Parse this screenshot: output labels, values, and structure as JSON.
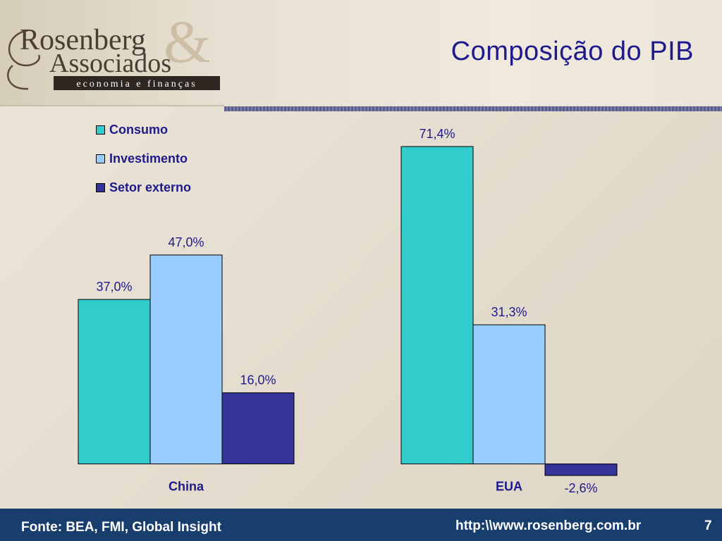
{
  "header": {
    "logo_text_line1": "Rosenberg",
    "logo_text_line2": "Associados",
    "logo_ampersand": "&",
    "logo_tagline": "economia e finanças",
    "title": "Composição do PIB"
  },
  "chart_data": {
    "type": "bar",
    "categories": [
      "China",
      "EUA"
    ],
    "series": [
      {
        "name": "Consumo",
        "color": "#33cccc",
        "values": [
          37.0,
          71.4
        ],
        "labels": [
          "37,0%",
          "71,4%"
        ]
      },
      {
        "name": "Investimento",
        "color": "#99ccff",
        "values": [
          47.0,
          31.3
        ],
        "labels": [
          "47,0%",
          "31,3%"
        ]
      },
      {
        "name": "Setor externo",
        "color": "#333399",
        "values": [
          16.0,
          -2.6
        ],
        "labels": [
          "16,0%",
          "-2,6%"
        ]
      }
    ],
    "legend_position": "top-left",
    "grid": false,
    "ylim": [
      -2.6,
      71.4
    ]
  },
  "footer": {
    "source": "Fonte: BEA, FMI, Global Insight",
    "url": "http:\\\\www.rosenberg.com.br",
    "page_number": "7",
    "background_color": "#173e6d"
  }
}
